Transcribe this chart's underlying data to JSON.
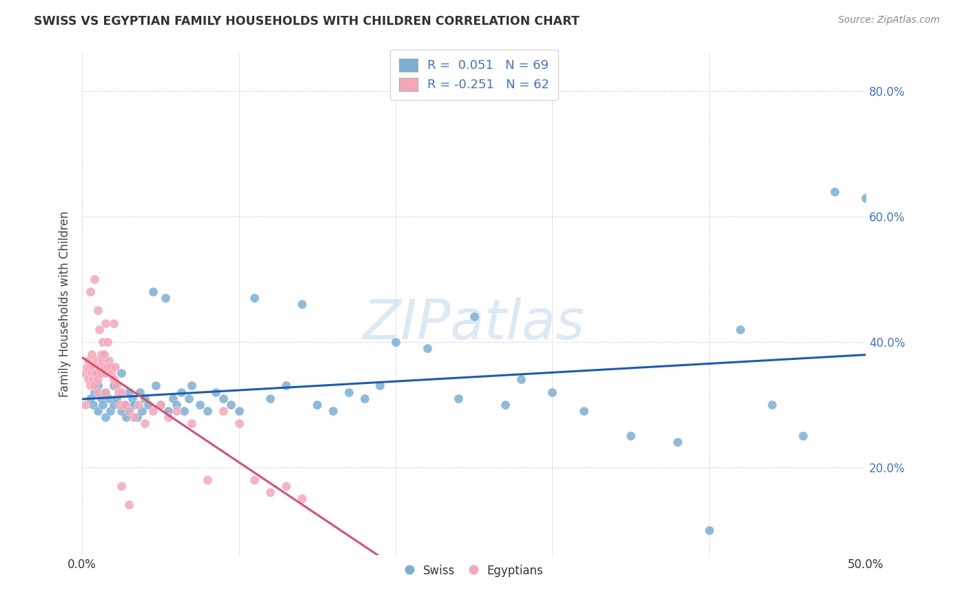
{
  "title": "SWISS VS EGYPTIAN FAMILY HOUSEHOLDS WITH CHILDREN CORRELATION CHART",
  "source": "Source: ZipAtlas.com",
  "ylabel": "Family Households with Children",
  "xmin": 0.0,
  "xmax": 0.5,
  "ymin": 0.06,
  "ymax": 0.86,
  "yticks": [
    0.2,
    0.4,
    0.6,
    0.8
  ],
  "ytick_labels": [
    "20.0%",
    "40.0%",
    "60.0%",
    "80.0%"
  ],
  "xticks": [
    0.0,
    0.1,
    0.2,
    0.3,
    0.4,
    0.5
  ],
  "xtick_labels": [
    "0.0%",
    "",
    "",
    "",
    "",
    "50.0%"
  ],
  "swiss_R": 0.051,
  "swiss_N": 69,
  "egyptian_R": -0.251,
  "egyptian_N": 62,
  "swiss_color": "#7bafd4",
  "egyptian_color": "#f4a7b9",
  "swiss_line_color": "#1a5cb0",
  "egyptian_line_solid_color": "#d94f6e",
  "egyptian_line_dash_color": "#e8a0b8",
  "watermark": "ZIPatlas",
  "swiss_x": [
    0.005,
    0.007,
    0.008,
    0.01,
    0.01,
    0.012,
    0.013,
    0.015,
    0.015,
    0.017,
    0.018,
    0.02,
    0.02,
    0.022,
    0.025,
    0.025,
    0.027,
    0.028,
    0.03,
    0.03,
    0.032,
    0.033,
    0.035,
    0.037,
    0.038,
    0.04,
    0.042,
    0.045,
    0.047,
    0.05,
    0.053,
    0.055,
    0.058,
    0.06,
    0.063,
    0.065,
    0.068,
    0.07,
    0.075,
    0.08,
    0.085,
    0.09,
    0.095,
    0.1,
    0.11,
    0.12,
    0.13,
    0.14,
    0.15,
    0.16,
    0.17,
    0.18,
    0.19,
    0.2,
    0.22,
    0.24,
    0.25,
    0.27,
    0.28,
    0.3,
    0.32,
    0.35,
    0.38,
    0.4,
    0.42,
    0.44,
    0.46,
    0.48,
    0.5
  ],
  "swiss_y": [
    0.31,
    0.3,
    0.32,
    0.29,
    0.33,
    0.31,
    0.3,
    0.28,
    0.32,
    0.31,
    0.29,
    0.3,
    0.33,
    0.31,
    0.29,
    0.35,
    0.3,
    0.28,
    0.29,
    0.32,
    0.31,
    0.3,
    0.28,
    0.32,
    0.29,
    0.31,
    0.3,
    0.48,
    0.33,
    0.3,
    0.47,
    0.29,
    0.31,
    0.3,
    0.32,
    0.29,
    0.31,
    0.33,
    0.3,
    0.29,
    0.32,
    0.31,
    0.3,
    0.29,
    0.47,
    0.31,
    0.33,
    0.46,
    0.3,
    0.29,
    0.32,
    0.31,
    0.33,
    0.4,
    0.39,
    0.31,
    0.44,
    0.3,
    0.34,
    0.32,
    0.29,
    0.25,
    0.24,
    0.1,
    0.42,
    0.3,
    0.25,
    0.64,
    0.63
  ],
  "egyptian_x": [
    0.002,
    0.003,
    0.004,
    0.004,
    0.005,
    0.005,
    0.006,
    0.006,
    0.007,
    0.007,
    0.008,
    0.008,
    0.009,
    0.009,
    0.01,
    0.01,
    0.011,
    0.011,
    0.012,
    0.012,
    0.013,
    0.013,
    0.014,
    0.014,
    0.015,
    0.015,
    0.016,
    0.016,
    0.017,
    0.018,
    0.019,
    0.02,
    0.021,
    0.022,
    0.023,
    0.024,
    0.025,
    0.027,
    0.03,
    0.033,
    0.036,
    0.04,
    0.045,
    0.05,
    0.055,
    0.06,
    0.07,
    0.08,
    0.09,
    0.1,
    0.11,
    0.12,
    0.13,
    0.14,
    0.002,
    0.005,
    0.008,
    0.01,
    0.015,
    0.02,
    0.025,
    0.03
  ],
  "egyptian_y": [
    0.35,
    0.36,
    0.34,
    0.37,
    0.33,
    0.36,
    0.35,
    0.38,
    0.34,
    0.36,
    0.35,
    0.33,
    0.37,
    0.35,
    0.45,
    0.34,
    0.42,
    0.36,
    0.38,
    0.35,
    0.37,
    0.4,
    0.36,
    0.38,
    0.35,
    0.43,
    0.36,
    0.4,
    0.37,
    0.36,
    0.35,
    0.34,
    0.36,
    0.33,
    0.32,
    0.3,
    0.32,
    0.3,
    0.29,
    0.28,
    0.3,
    0.27,
    0.29,
    0.3,
    0.28,
    0.29,
    0.27,
    0.18,
    0.29,
    0.27,
    0.18,
    0.16,
    0.17,
    0.15,
    0.3,
    0.48,
    0.5,
    0.32,
    0.32,
    0.43,
    0.17,
    0.14
  ]
}
